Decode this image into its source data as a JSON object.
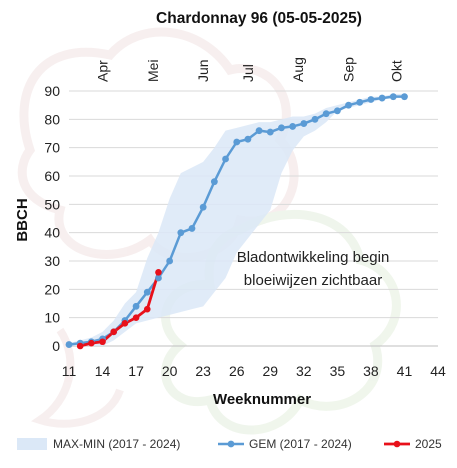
{
  "chart_data": {
    "type": "line",
    "title": "Chardonnay 96 (05-05-2025)",
    "xlabel": "Weeknummer",
    "ylabel": "BBCH",
    "xlim": [
      11,
      44
    ],
    "ylim": [
      0,
      90
    ],
    "x_ticks": [
      11,
      14,
      17,
      20,
      23,
      26,
      29,
      32,
      35,
      38,
      41,
      44
    ],
    "y_ticks": [
      0,
      10,
      20,
      30,
      40,
      50,
      60,
      70,
      80,
      90
    ],
    "grid": "horizontal",
    "months": [
      {
        "label": "Apr",
        "week": 14
      },
      {
        "label": "Mei",
        "week": 18.5
      },
      {
        "label": "Jun",
        "week": 23
      },
      {
        "label": "Jul",
        "week": 27
      },
      {
        "label": "Aug",
        "week": 31.5
      },
      {
        "label": "Sep",
        "week": 36
      },
      {
        "label": "Okt",
        "week": 40.3
      }
    ],
    "annotation": [
      "Bladontwikkeling begin",
      "bloeiwijzen zichtbaar"
    ],
    "legend_position": "bottom",
    "series": [
      {
        "name": "MAX-MIN (2017 - 2024)",
        "kind": "band",
        "color": "#dbe8f7",
        "x": [
          11,
          12,
          13,
          14,
          15,
          16,
          17,
          18,
          19,
          20,
          21,
          22,
          23,
          24,
          25,
          26,
          27,
          28,
          29,
          30,
          31,
          32,
          33,
          34,
          35,
          36,
          37,
          38,
          39,
          40,
          41
        ],
        "upper": [
          1,
          2,
          3,
          5,
          9,
          15,
          19,
          31,
          40,
          52,
          61,
          63,
          65,
          70,
          76,
          77,
          78,
          79,
          79,
          80,
          81,
          81,
          82,
          84,
          85,
          86,
          87,
          88,
          88,
          89,
          89
        ],
        "lower": [
          0,
          0,
          0,
          0,
          2,
          5,
          8,
          9,
          10,
          11,
          12,
          13,
          14,
          19,
          24,
          33,
          38,
          43,
          48,
          61,
          69,
          74,
          76,
          79,
          83,
          84,
          85,
          86,
          87,
          88,
          88
        ]
      },
      {
        "name": "GEM (2017 - 2024)",
        "kind": "line",
        "color": "#5b9bd5",
        "x": [
          11,
          12,
          13,
          14,
          15,
          16,
          17,
          18,
          19,
          20,
          21,
          22,
          23,
          24,
          25,
          26,
          27,
          28,
          29,
          30,
          31,
          32,
          33,
          34,
          35,
          36,
          37,
          38,
          39,
          40,
          41
        ],
        "values": [
          0.5,
          1,
          1.5,
          2.5,
          5,
          9,
          14,
          19,
          24,
          30,
          40,
          41.5,
          49,
          58,
          66,
          72,
          73,
          76,
          75.5,
          77,
          77.5,
          78.5,
          80,
          82,
          83,
          85,
          86,
          87,
          87.5,
          88,
          88
        ]
      },
      {
        "name": "2025",
        "kind": "line",
        "color": "#e8101a",
        "x": [
          12,
          13,
          14,
          15,
          16,
          17,
          18,
          19
        ],
        "values": [
          0,
          1,
          1.5,
          5,
          8,
          10,
          13,
          26
        ]
      }
    ]
  }
}
